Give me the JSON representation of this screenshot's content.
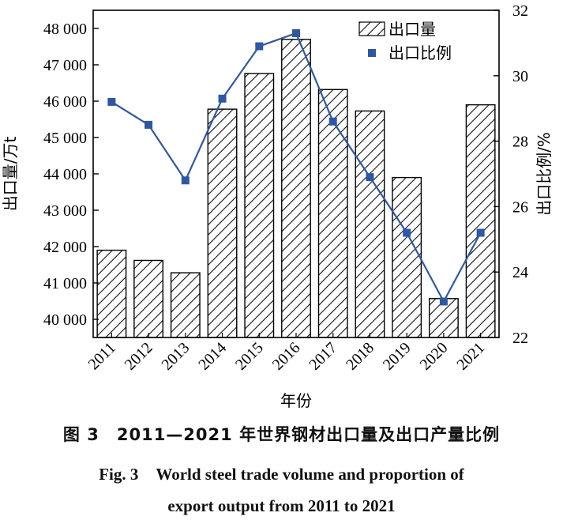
{
  "chart_data": {
    "type": "bar",
    "categories": [
      "2011",
      "2012",
      "2013",
      "2014",
      "2015",
      "2016",
      "2017",
      "2018",
      "2019",
      "2020",
      "2021"
    ],
    "series": [
      {
        "name": "出口量",
        "type": "bar",
        "axis": "left",
        "values": [
          41900,
          41620,
          41280,
          45780,
          46760,
          47700,
          46320,
          45730,
          43900,
          40570,
          45900
        ]
      },
      {
        "name": "出口比例",
        "type": "line",
        "axis": "right",
        "values": [
          29.2,
          28.5,
          26.8,
          29.3,
          30.9,
          31.3,
          28.6,
          26.9,
          25.2,
          23.1,
          25.2
        ]
      }
    ],
    "xlabel": "年份",
    "ylabel": "出口量/万t",
    "y2label": "出口比例/%",
    "ylim": [
      39500,
      48500
    ],
    "yticks": [
      40000,
      41000,
      42000,
      43000,
      44000,
      45000,
      46000,
      47000,
      48000
    ],
    "ytick_labels": [
      "40 000",
      "41 000",
      "42 000",
      "43 000",
      "44 000",
      "45 000",
      "46 000",
      "47 000",
      "48 000"
    ],
    "y2lim": [
      22,
      32
    ],
    "y2ticks": [
      22,
      24,
      26,
      28,
      30,
      32
    ],
    "legend_position": "top-right",
    "grid": false,
    "colors": {
      "bar_fill": "#ffffff",
      "hatch": "#111111",
      "line": "#2e58a6"
    }
  },
  "caption": {
    "cn_number": "图 3",
    "cn_text": "2011—2021 年世界钢材出口量及出口产量比例",
    "en_number": "Fig. 3",
    "en_line1": "World steel trade volume and proportion of",
    "en_line2": "export output from 2011 to 2021"
  }
}
